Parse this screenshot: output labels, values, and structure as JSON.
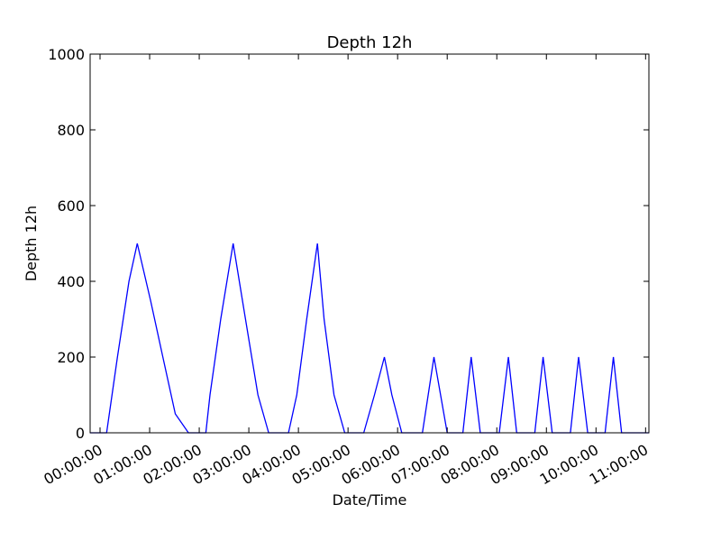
{
  "chart_data": {
    "type": "line",
    "title": "Depth 12h",
    "xlabel": "Date/Time",
    "ylabel": "Depth 12h",
    "xlim": [
      "2000-01-01T23:48:00",
      "2000-01-02T11:04:00"
    ],
    "ylim": [
      0,
      1000
    ],
    "y_ticks": [
      0,
      200,
      400,
      600,
      800,
      1000
    ],
    "x_ticks": [
      "00:00:00",
      "01:00:00",
      "02:00:00",
      "03:00:00",
      "04:00:00",
      "05:00:00",
      "06:00:00",
      "07:00:00",
      "08:00:00",
      "09:00:00",
      "10:00:00",
      "11:00:00"
    ],
    "grid": false,
    "series": [
      {
        "color": "#0000ff",
        "x": [
          "2000-01-01T23:48:00",
          "2000-01-01T23:57:00",
          "2000-01-02T00:08:00",
          "2000-01-02T00:21:00",
          "2000-01-02T00:35:00",
          "2000-01-02T00:45:00",
          "2000-01-02T01:01:00",
          "2000-01-02T01:16:00",
          "2000-01-02T01:31:00",
          "2000-01-02T01:47:00",
          "2000-01-02T01:57:00",
          "2000-01-02T02:08:00",
          "2000-01-02T02:13:00",
          "2000-01-02T02:26:00",
          "2000-01-02T02:41:00",
          "2000-01-02T02:56:00",
          "2000-01-02T03:11:00",
          "2000-01-02T03:24:00",
          "2000-01-02T03:36:00",
          "2000-01-02T03:48:00",
          "2000-01-02T03:58:00",
          "2000-01-02T04:10:00",
          "2000-01-02T04:23:00",
          "2000-01-02T04:31:00",
          "2000-01-02T04:43:00",
          "2000-01-02T04:56:00",
          "2000-01-02T05:08:00",
          "2000-01-02T05:19:00",
          "2000-01-02T05:32:00",
          "2000-01-02T05:44:00",
          "2000-01-02T05:53:00",
          "2000-01-02T06:05:00",
          "2000-01-02T06:17:00",
          "2000-01-02T06:30:00",
          "2000-01-02T06:44:00",
          "2000-01-02T07:00:00",
          "2000-01-02T07:09:00",
          "2000-01-02T07:19:00",
          "2000-01-02T07:29:00",
          "2000-01-02T07:40:00",
          "2000-01-02T07:53:00",
          "2000-01-02T08:03:00",
          "2000-01-02T08:14:00",
          "2000-01-02T08:24:00",
          "2000-01-02T08:34:00",
          "2000-01-02T08:46:00",
          "2000-01-02T08:56:00",
          "2000-01-02T09:07:00",
          "2000-01-02T09:17:00",
          "2000-01-02T09:29:00",
          "2000-01-02T09:39:00",
          "2000-01-02T09:50:00",
          "2000-01-02T10:01:00",
          "2000-01-02T10:11:00",
          "2000-01-02T10:21:00",
          "2000-01-02T10:31:00",
          "2000-01-02T10:44:00",
          "2000-01-02T10:52:00",
          "2000-01-02T10:58:00",
          "2000-01-02T11:01:00",
          "2000-01-02T11:04:00"
        ],
        "y": [
          0,
          0,
          0,
          200,
          400,
          500,
          350,
          200,
          50,
          0,
          0,
          0,
          100,
          300,
          500,
          300,
          100,
          0,
          0,
          0,
          100,
          300,
          500,
          300,
          100,
          0,
          0,
          0,
          100,
          200,
          100,
          0,
          0,
          0,
          200,
          0,
          0,
          0,
          200,
          0,
          0,
          0,
          200,
          0,
          0,
          0,
          200,
          0,
          0,
          0,
          200,
          0,
          0,
          0,
          200,
          0,
          0,
          0,
          0,
          0,
          0
        ]
      }
    ]
  }
}
